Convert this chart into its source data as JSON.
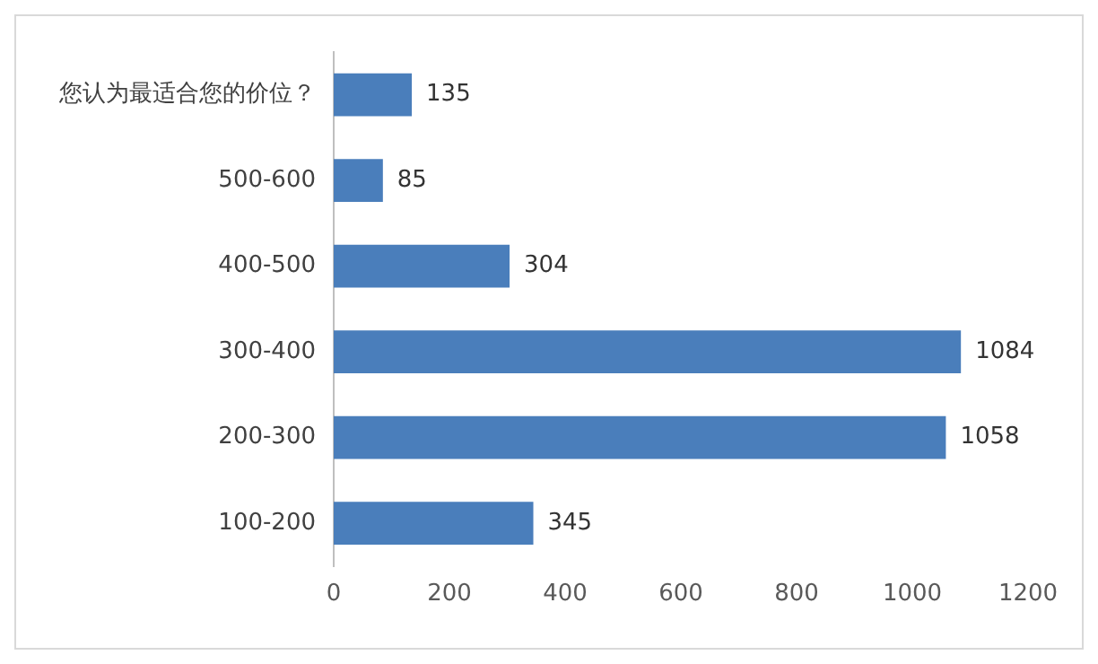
{
  "chart_data": {
    "type": "bar",
    "orientation": "horizontal",
    "categories": [
      "您认为最适合您的价位？",
      "500-600",
      "400-500",
      "300-400",
      "200-300",
      "100-200"
    ],
    "values": [
      135,
      85,
      304,
      1084,
      1058,
      345
    ],
    "color": "#4a7ebb",
    "xlim": [
      0,
      1200
    ],
    "xticks": [
      0,
      200,
      400,
      600,
      800,
      1000,
      1200
    ],
    "grid": false,
    "legend": false,
    "data_labels": true
  }
}
